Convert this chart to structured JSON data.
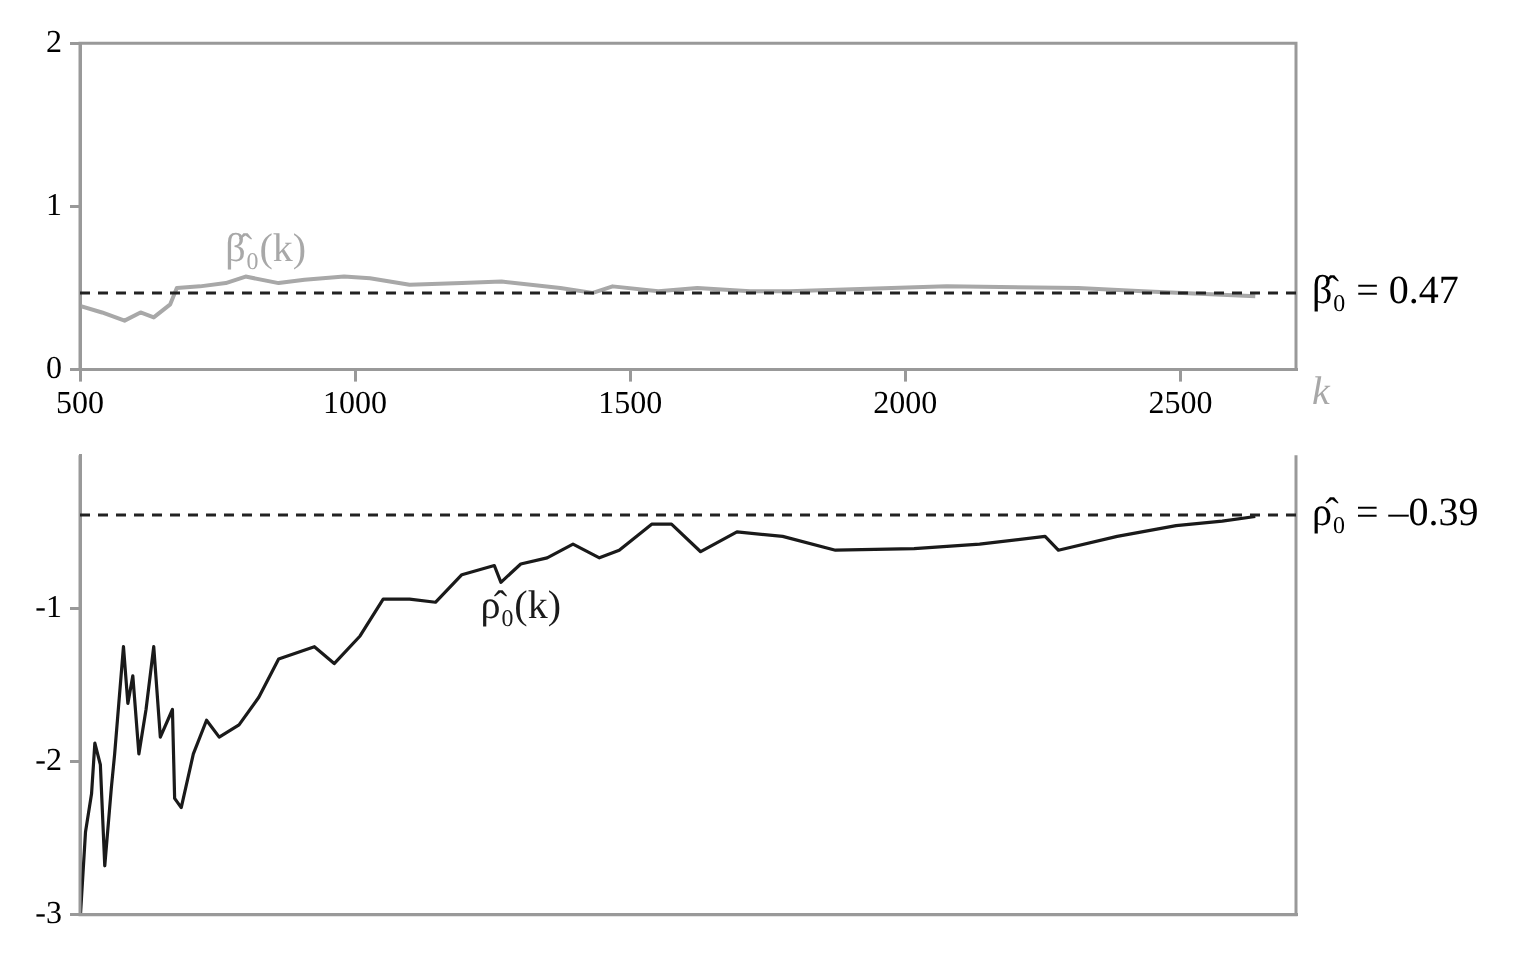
{
  "chart_data": [
    {
      "type": "line",
      "xlabel": "k",
      "xlim": [
        500,
        2710
      ],
      "xticks": [
        500,
        1000,
        1500,
        2000,
        2500
      ],
      "ylim": [
        0,
        2
      ],
      "yticks": [
        0,
        1,
        2
      ],
      "marker": "none",
      "series": [
        {
          "name": "β̂₀(k)",
          "color": "#a8a8a8",
          "x": [
            500,
            540,
            581,
            610,
            634,
            664,
            676,
            718,
            765,
            801,
            861,
            908,
            980,
            1027,
            1099,
            1194,
            1266,
            1373,
            1432,
            1468,
            1551,
            1622,
            1718,
            1789,
            2075,
            2314,
            2432,
            2636
          ],
          "values": [
            0.39,
            0.35,
            0.3,
            0.35,
            0.32,
            0.4,
            0.5,
            0.51,
            0.53,
            0.57,
            0.53,
            0.55,
            0.57,
            0.56,
            0.52,
            0.53,
            0.54,
            0.5,
            0.47,
            0.51,
            0.48,
            0.5,
            0.48,
            0.48,
            0.51,
            0.5,
            0.48,
            0.45
          ]
        }
      ],
      "ref_lines": [
        {
          "axis": "y",
          "value": 0.47,
          "label": "β̂₀ = 0.47",
          "color": "#222222",
          "line_style": "dashed"
        }
      ]
    },
    {
      "type": "line",
      "tick_labels": "y",
      "xlim": [
        500,
        2710
      ],
      "xticks": [
        500,
        1000,
        1500,
        2000,
        2500
      ],
      "ylim": [
        -3,
        0
      ],
      "yticks": [
        -3,
        -2,
        -1
      ],
      "marker": "none",
      "series": [
        {
          "name": "ρ̂₀(k)",
          "color": "#1a1a1a",
          "x": [
            501,
            510,
            521,
            527,
            537,
            545,
            557,
            563,
            579,
            587,
            596,
            607,
            620,
            634,
            646,
            668,
            672,
            684,
            706,
            730,
            753,
            789,
            825,
            861,
            926,
            962,
            1009,
            1051,
            1099,
            1146,
            1194,
            1253,
            1265,
            1301,
            1349,
            1396,
            1444,
            1480,
            1539,
            1575,
            1628,
            1694,
            1777,
            1873,
            2016,
            2135,
            2254,
            2278,
            2385,
            2492,
            2576,
            2636
          ],
          "values": [
            -2.99,
            -2.46,
            -2.21,
            -1.88,
            -2.02,
            -2.68,
            -2.17,
            -1.95,
            -1.25,
            -1.62,
            -1.44,
            -1.95,
            -1.66,
            -1.25,
            -1.84,
            -1.66,
            -2.24,
            -2.3,
            -1.95,
            -1.73,
            -1.84,
            -1.76,
            -1.58,
            -1.33,
            -1.25,
            -1.36,
            -1.18,
            -0.94,
            -0.94,
            -0.96,
            -0.78,
            -0.72,
            -0.83,
            -0.71,
            -0.67,
            -0.58,
            -0.67,
            -0.62,
            -0.45,
            -0.45,
            -0.63,
            -0.5,
            -0.53,
            -0.62,
            -0.61,
            -0.58,
            -0.53,
            -0.62,
            -0.53,
            -0.46,
            -0.43,
            -0.4
          ]
        }
      ],
      "ref_lines": [
        {
          "axis": "y",
          "value": -0.39,
          "label": "ρ̂₀ = –0.39",
          "color": "#222222",
          "line_style": "dashed"
        }
      ]
    }
  ]
}
